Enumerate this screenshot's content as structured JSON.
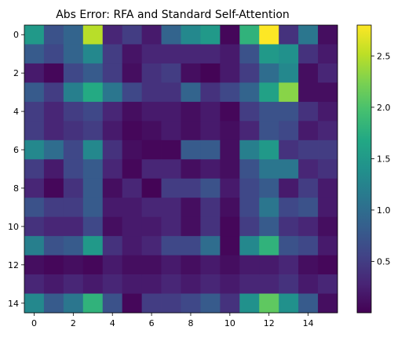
{
  "chart_data": {
    "type": "heatmap",
    "title": "Abs Error: RFA and Standard Self-Attention",
    "xlabel": "",
    "ylabel": "",
    "rows": 15,
    "cols": 16,
    "x_ticks": [
      0,
      2,
      4,
      6,
      8,
      10,
      12,
      14
    ],
    "y_ticks": [
      0,
      2,
      4,
      6,
      8,
      10,
      12,
      14
    ],
    "colorbar": {
      "min": 0.0,
      "max": 2.8,
      "ticks": [
        0.5,
        1.0,
        1.5,
        2.0,
        2.5
      ],
      "tick_labels": [
        "0.5",
        "1.0",
        "1.5",
        "2.0",
        "2.5"
      ],
      "colormap": "viridis"
    },
    "values": [
      [
        1.5,
        0.7,
        0.9,
        2.5,
        0.3,
        0.5,
        0.2,
        0.9,
        1.3,
        1.5,
        0.05,
        1.8,
        2.8,
        0.4,
        1.1,
        0.1
      ],
      [
        0.8,
        0.6,
        0.9,
        1.3,
        0.5,
        0.15,
        0.3,
        0.3,
        0.3,
        0.3,
        0.2,
        0.7,
        1.5,
        1.4,
        0.4,
        0.2
      ],
      [
        0.2,
        0.05,
        0.6,
        0.8,
        0.5,
        0.1,
        0.4,
        0.5,
        0.1,
        0.02,
        0.2,
        0.5,
        1.0,
        1.3,
        0.1,
        0.3
      ],
      [
        0.8,
        0.5,
        1.2,
        1.7,
        1.1,
        0.6,
        0.4,
        0.4,
        0.9,
        0.4,
        0.6,
        0.9,
        1.6,
        2.3,
        0.1,
        0.1
      ],
      [
        0.5,
        0.3,
        0.5,
        0.6,
        0.3,
        0.1,
        0.2,
        0.2,
        0.1,
        0.2,
        0.05,
        0.5,
        0.7,
        0.7,
        0.4,
        0.2
      ],
      [
        0.5,
        0.3,
        0.4,
        0.5,
        0.2,
        0.05,
        0.1,
        0.2,
        0.1,
        0.2,
        0.1,
        0.3,
        0.7,
        0.6,
        0.2,
        0.3
      ],
      [
        1.3,
        1.0,
        0.6,
        1.3,
        0.4,
        0.1,
        0.05,
        0.05,
        0.8,
        0.8,
        0.1,
        1.2,
        1.5,
        0.4,
        0.5,
        0.5
      ],
      [
        0.5,
        0.2,
        0.6,
        0.8,
        0.3,
        0.05,
        0.3,
        0.3,
        0.1,
        0.2,
        0.1,
        0.7,
        1.1,
        1.1,
        0.3,
        0.4
      ],
      [
        0.3,
        0.05,
        0.4,
        0.8,
        0.1,
        0.3,
        0.02,
        0.5,
        0.5,
        0.7,
        0.2,
        0.6,
        0.8,
        0.2,
        0.5,
        0.2
      ],
      [
        0.7,
        0.5,
        0.5,
        0.8,
        0.2,
        0.2,
        0.3,
        0.3,
        0.1,
        0.4,
        0.1,
        0.6,
        1.1,
        0.6,
        0.7,
        0.2
      ],
      [
        0.4,
        0.3,
        0.3,
        0.6,
        0.1,
        0.2,
        0.2,
        0.3,
        0.1,
        0.4,
        0.05,
        0.5,
        0.8,
        0.4,
        0.3,
        0.1
      ],
      [
        1.2,
        0.7,
        0.8,
        1.5,
        0.4,
        0.2,
        0.3,
        0.6,
        0.6,
        1.0,
        0.05,
        1.3,
        1.8,
        0.7,
        0.6,
        0.2
      ],
      [
        0.1,
        0.05,
        0.1,
        0.05,
        0.2,
        0.1,
        0.1,
        0.2,
        0.1,
        0.2,
        0.1,
        0.2,
        0.2,
        0.3,
        0.1,
        0.05
      ],
      [
        0.3,
        0.2,
        0.3,
        0.2,
        0.3,
        0.2,
        0.2,
        0.3,
        0.2,
        0.3,
        0.2,
        0.3,
        0.3,
        0.4,
        0.2,
        0.3
      ],
      [
        1.3,
        0.8,
        1.1,
        1.8,
        0.7,
        0.05,
        0.5,
        0.5,
        0.6,
        0.8,
        0.4,
        1.4,
        2.1,
        1.4,
        0.8,
        0.1
      ]
    ]
  }
}
